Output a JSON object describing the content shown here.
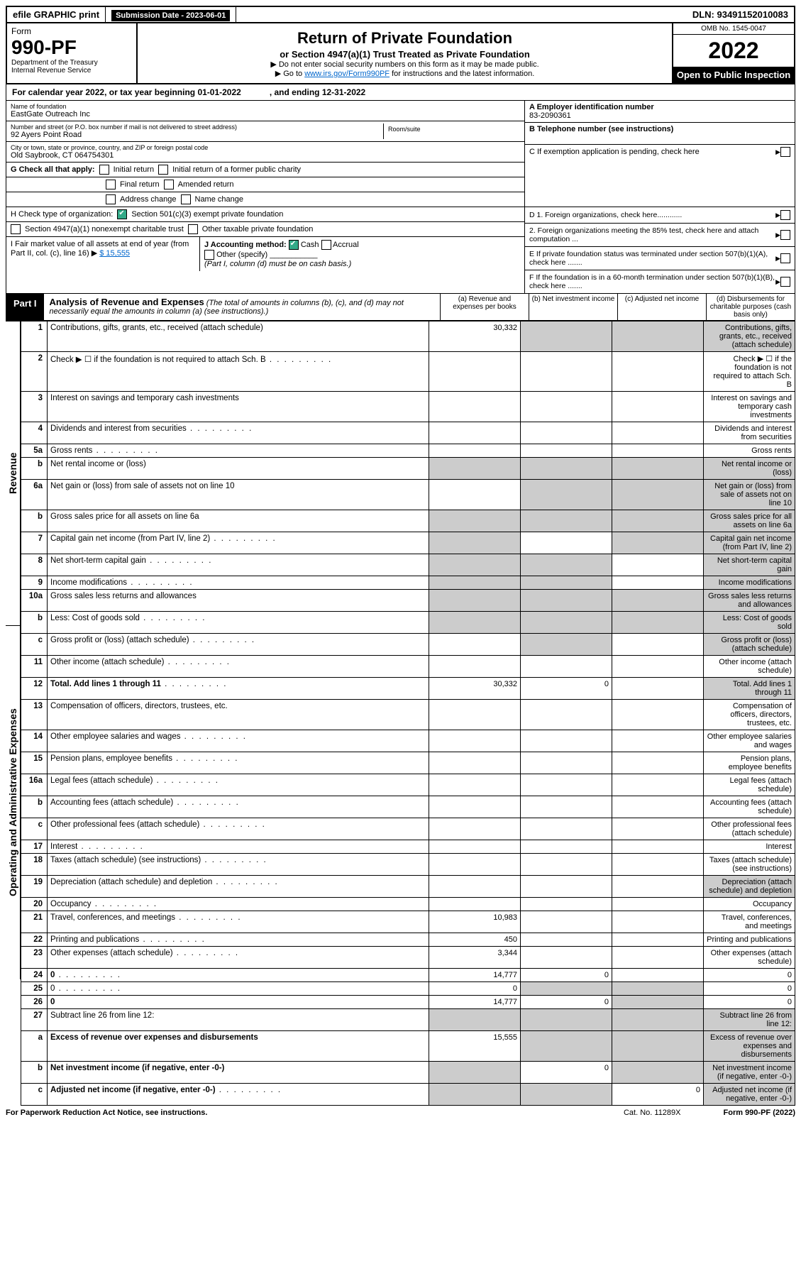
{
  "topbar": {
    "efile": "efile GRAPHIC print",
    "subdate_lbl": "Submission Date - 2023-06-01",
    "dln": "DLN: 93491152010083"
  },
  "hdr": {
    "form_word": "Form",
    "form_num": "990-PF",
    "dept1": "Department of the Treasury",
    "dept2": "Internal Revenue Service",
    "title": "Return of Private Foundation",
    "sub": "or Section 4947(a)(1) Trust Treated as Private Foundation",
    "note1": "▶ Do not enter social security numbers on this form as it may be made public.",
    "note2_pre": "▶ Go to ",
    "note2_link": "www.irs.gov/Form990PF",
    "note2_post": " for instructions and the latest information.",
    "omb": "OMB No. 1545-0047",
    "year": "2022",
    "open": "Open to Public Inspection"
  },
  "cal": {
    "line_a": "For calendar year 2022, or tax year beginning 01-01-2022",
    "line_b": ", and ending 12-31-2022"
  },
  "name": {
    "lbl": "Name of foundation",
    "val": "EastGate Outreach Inc"
  },
  "addr": {
    "street_lbl": "Number and street (or P.O. box number if mail is not delivered to street address)",
    "street": "92 Ayers Point Road",
    "room_lbl": "Room/suite",
    "city_lbl": "City or town, state or province, country, and ZIP or foreign postal code",
    "city": "Old Saybrook, CT  064754301"
  },
  "right": {
    "a_lbl": "A Employer identification number",
    "a_val": "83-2090361",
    "b_lbl": "B Telephone number (see instructions)",
    "c_lbl": "C If exemption application is pending, check here",
    "d1": "D 1. Foreign organizations, check here............",
    "d2": "2. Foreign organizations meeting the 85% test, check here and attach computation ...",
    "e": "E  If private foundation status was terminated under section 507(b)(1)(A), check here .......",
    "f": "F  If the foundation is in a 60-month termination under section 507(b)(1)(B), check here ......."
  },
  "g": {
    "lbl": "G Check all that apply:",
    "o1": "Initial return",
    "o2": "Initial return of a former public charity",
    "o3": "Final return",
    "o4": "Amended return",
    "o5": "Address change",
    "o6": "Name change"
  },
  "h": {
    "lbl": "H Check type of organization:",
    "o1": "Section 501(c)(3) exempt private foundation",
    "o2": "Section 4947(a)(1) nonexempt charitable trust",
    "o3": "Other taxable private foundation"
  },
  "i": {
    "lbl": "I Fair market value of all assets at end of year (from Part II, col. (c), line 16) ▶",
    "val": "$  15,555"
  },
  "j": {
    "lbl": "J Accounting method:",
    "o1": "Cash",
    "o2": "Accrual",
    "o3": "Other (specify)",
    "note": "(Part I, column (d) must be on cash basis.)"
  },
  "part1": {
    "label": "Part I",
    "title": "Analysis of Revenue and Expenses",
    "title_note": " (The total of amounts in columns (b), (c), and (d) may not necessarily equal the amounts in column (a) (see instructions).)",
    "col_a": "(a)  Revenue and expenses per books",
    "col_b": "(b)  Net investment income",
    "col_c": "(c)  Adjusted net income",
    "col_d": "(d)  Disbursements for charitable purposes (cash basis only)"
  },
  "side": {
    "rev": "Revenue",
    "ope": "Operating and Administrative Expenses"
  },
  "rows": [
    {
      "n": "1",
      "d": "Contributions, gifts, grants, etc., received (attach schedule)",
      "a": "30,332",
      "shade": [
        "b",
        "c",
        "d"
      ]
    },
    {
      "n": "2",
      "d": "Check ▶ ☐ if the foundation is not required to attach Sch. B",
      "nofields": true,
      "dots": true
    },
    {
      "n": "3",
      "d": "Interest on savings and temporary cash investments"
    },
    {
      "n": "4",
      "d": "Dividends and interest from securities",
      "dots": true
    },
    {
      "n": "5a",
      "d": "Gross rents",
      "dots": true
    },
    {
      "n": "b",
      "d": "Net rental income or (loss)",
      "inline": true,
      "shade": [
        "a",
        "b",
        "c",
        "d"
      ]
    },
    {
      "n": "6a",
      "d": "Net gain or (loss) from sale of assets not on line 10",
      "shade": [
        "b",
        "c",
        "d"
      ]
    },
    {
      "n": "b",
      "d": "Gross sales price for all assets on line 6a",
      "inline": true,
      "shade": [
        "a",
        "b",
        "c",
        "d"
      ]
    },
    {
      "n": "7",
      "d": "Capital gain net income (from Part IV, line 2)",
      "dots": true,
      "shade": [
        "a",
        "c",
        "d"
      ]
    },
    {
      "n": "8",
      "d": "Net short-term capital gain",
      "dots": true,
      "shade": [
        "a",
        "b",
        "d"
      ]
    },
    {
      "n": "9",
      "d": "Income modifications",
      "dots": true,
      "shade": [
        "a",
        "b",
        "d"
      ]
    },
    {
      "n": "10a",
      "d": "Gross sales less returns and allowances",
      "inline": true,
      "shade": [
        "a",
        "b",
        "c",
        "d"
      ]
    },
    {
      "n": "b",
      "d": "Less: Cost of goods sold",
      "dots": true,
      "inline": true,
      "shade": [
        "a",
        "b",
        "c",
        "d"
      ]
    },
    {
      "n": "c",
      "d": "Gross profit or (loss) (attach schedule)",
      "dots": true,
      "shade": [
        "b",
        "d"
      ]
    },
    {
      "n": "11",
      "d": "Other income (attach schedule)",
      "dots": true
    },
    {
      "n": "12",
      "d": "Total. Add lines 1 through 11",
      "dots": true,
      "bold": true,
      "a": "30,332",
      "b": "0",
      "shade": [
        "d"
      ]
    },
    {
      "n": "13",
      "d": "Compensation of officers, directors, trustees, etc."
    },
    {
      "n": "14",
      "d": "Other employee salaries and wages",
      "dots": true
    },
    {
      "n": "15",
      "d": "Pension plans, employee benefits",
      "dots": true
    },
    {
      "n": "16a",
      "d": "Legal fees (attach schedule)",
      "dots": true
    },
    {
      "n": "b",
      "d": "Accounting fees (attach schedule)",
      "dots": true
    },
    {
      "n": "c",
      "d": "Other professional fees (attach schedule)",
      "dots": true
    },
    {
      "n": "17",
      "d": "Interest",
      "dots": true
    },
    {
      "n": "18",
      "d": "Taxes (attach schedule) (see instructions)",
      "dots": true
    },
    {
      "n": "19",
      "d": "Depreciation (attach schedule) and depletion",
      "dots": true,
      "shade": [
        "d"
      ]
    },
    {
      "n": "20",
      "d": "Occupancy",
      "dots": true
    },
    {
      "n": "21",
      "d": "Travel, conferences, and meetings",
      "dots": true,
      "a": "10,983"
    },
    {
      "n": "22",
      "d": "Printing and publications",
      "dots": true,
      "a": "450"
    },
    {
      "n": "23",
      "d": "Other expenses (attach schedule)",
      "dots": true,
      "a": "3,344"
    },
    {
      "n": "24",
      "d": "0",
      "dots": true,
      "bold": true,
      "a": "14,777",
      "b": "0"
    },
    {
      "n": "25",
      "d": "0",
      "dots": true,
      "a": "0",
      "shade": [
        "b",
        "c"
      ]
    },
    {
      "n": "26",
      "d": "0",
      "bold": true,
      "a": "14,777",
      "b": "0",
      "shade": [
        "c"
      ]
    },
    {
      "n": "27",
      "d": "Subtract line 26 from line 12:",
      "shade": [
        "a",
        "b",
        "c",
        "d"
      ]
    },
    {
      "n": "a",
      "d": "Excess of revenue over expenses and disbursements",
      "bold": true,
      "a": "15,555",
      "shade": [
        "b",
        "c",
        "d"
      ]
    },
    {
      "n": "b",
      "d": "Net investment income (if negative, enter -0-)",
      "bold": true,
      "b": "0",
      "shade": [
        "a",
        "c",
        "d"
      ]
    },
    {
      "n": "c",
      "d": "Adjusted net income (if negative, enter -0-)",
      "bold": true,
      "dots": true,
      "c": "0",
      "shade": [
        "a",
        "b",
        "d"
      ]
    }
  ],
  "footer": {
    "left": "For Paperwork Reduction Act Notice, see instructions.",
    "mid": "Cat. No. 11289X",
    "right": "Form 990-PF (2022)"
  }
}
